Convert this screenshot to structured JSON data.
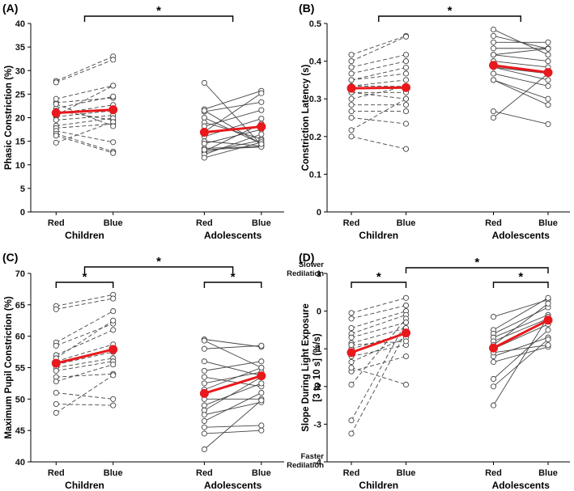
{
  "figure": {
    "xtick_labels": [
      "Red",
      "Blue",
      "Red",
      "Blue"
    ],
    "groups": [
      "Children",
      "Adolescents"
    ]
  },
  "colors": {
    "mean": "#e8191c",
    "individual": "#444444",
    "axis": "#000000"
  },
  "chart_data": [
    {
      "type": "line",
      "panel_label": "(A)",
      "ylabel": "Phasic Constriction (%)",
      "ylim": [
        0,
        40
      ],
      "yticks": [
        0,
        5,
        10,
        15,
        20,
        25,
        30,
        35,
        40
      ],
      "ytick_labels": [
        "0",
        "5",
        "10",
        "15",
        "20",
        "25",
        "30",
        "35",
        "40"
      ],
      "conditions": [
        "Red",
        "Blue"
      ],
      "groups": [
        "Children",
        "Adolescents"
      ],
      "children": {
        "pairs": [
          [
            27.8,
            33.0
          ],
          [
            27.5,
            32.3
          ],
          [
            23.2,
            24.2
          ],
          [
            24.0,
            26.8
          ],
          [
            22.0,
            24.5
          ],
          [
            21.5,
            19.5
          ],
          [
            20.8,
            22.7
          ],
          [
            20.2,
            21.5
          ],
          [
            19.5,
            20.5
          ],
          [
            18.3,
            19.9
          ],
          [
            17.8,
            18.7
          ],
          [
            17.2,
            14.8
          ],
          [
            16.6,
            12.8
          ],
          [
            16.2,
            12.5
          ],
          [
            14.7,
            19.1
          ],
          [
            20.5,
            26.8
          ],
          [
            22.9,
            18.2
          ]
        ],
        "mean": [
          21.0,
          21.7
        ]
      },
      "adolescents": {
        "pairs": [
          [
            27.4,
            14.2
          ],
          [
            21.8,
            25.7
          ],
          [
            21.3,
            23.3
          ],
          [
            20.0,
            14.5
          ],
          [
            19.0,
            15.5
          ],
          [
            18.2,
            21.6
          ],
          [
            17.0,
            25.2
          ],
          [
            16.0,
            19.8
          ],
          [
            15.0,
            14.0
          ],
          [
            14.5,
            17.5
          ],
          [
            13.5,
            13.9
          ],
          [
            12.9,
            18.7
          ],
          [
            12.7,
            15.2
          ],
          [
            12.2,
            16.5
          ],
          [
            11.5,
            14.8
          ],
          [
            13.2,
            13.8
          ],
          [
            21.5,
            14.4
          ]
        ],
        "mean": [
          16.9,
          18.1
        ]
      },
      "significance": [
        {
          "from": "Children",
          "to": "Adolescents",
          "label": "*"
        }
      ]
    },
    {
      "type": "line",
      "panel_label": "(B)",
      "ylabel": "Constriction Latency (s)",
      "ylim": [
        0,
        0.5
      ],
      "yticks": [
        0,
        0.1,
        0.2,
        0.3,
        0.4,
        0.5
      ],
      "ytick_labels": [
        "0",
        "0.1",
        "0.2",
        "0.3",
        "0.4",
        "0.5"
      ],
      "conditions": [
        "Red",
        "Blue"
      ],
      "groups": [
        "Children",
        "Adolescents"
      ],
      "children": {
        "pairs": [
          [
            0.417,
            0.467
          ],
          [
            0.4,
            0.465
          ],
          [
            0.384,
            0.417
          ],
          [
            0.367,
            0.4
          ],
          [
            0.35,
            0.383
          ],
          [
            0.334,
            0.35
          ],
          [
            0.334,
            0.333
          ],
          [
            0.317,
            0.317
          ],
          [
            0.317,
            0.3
          ],
          [
            0.3,
            0.333
          ],
          [
            0.284,
            0.284
          ],
          [
            0.267,
            0.267
          ],
          [
            0.25,
            0.234
          ],
          [
            0.217,
            0.3
          ],
          [
            0.2,
            0.167
          ],
          [
            0.35,
            0.367
          ]
        ],
        "mean": [
          0.328,
          0.33
        ]
      },
      "adolescents": {
        "pairs": [
          [
            0.484,
            0.417
          ],
          [
            0.467,
            0.433
          ],
          [
            0.45,
            0.45
          ],
          [
            0.434,
            0.434
          ],
          [
            0.417,
            0.4
          ],
          [
            0.4,
            0.384
          ],
          [
            0.384,
            0.367
          ],
          [
            0.384,
            0.35
          ],
          [
            0.367,
            0.334
          ],
          [
            0.35,
            0.3
          ],
          [
            0.35,
            0.284
          ],
          [
            0.267,
            0.233
          ],
          [
            0.25,
            0.367
          ],
          [
            0.417,
            0.433
          ]
        ],
        "mean": [
          0.389,
          0.37
        ]
      },
      "significance": [
        {
          "from": "Children",
          "to": "Adolescents",
          "label": "*"
        }
      ]
    },
    {
      "type": "line",
      "panel_label": "(C)",
      "ylabel": "Maximum Pupil Constriction (%)",
      "ylim": [
        40,
        70
      ],
      "yticks": [
        40,
        45,
        50,
        55,
        60,
        65,
        70
      ],
      "ytick_labels": [
        "40",
        "45",
        "50",
        "55",
        "60",
        "65",
        "70"
      ],
      "conditions": [
        "Red",
        "Blue"
      ],
      "groups": [
        "Children",
        "Adolescents"
      ],
      "children": {
        "pairs": [
          [
            64.8,
            66.6
          ],
          [
            64.3,
            66.0
          ],
          [
            59.0,
            64.0
          ],
          [
            58.5,
            62.0
          ],
          [
            57.0,
            61.0
          ],
          [
            56.0,
            58.7
          ],
          [
            55.5,
            57.5
          ],
          [
            55.0,
            56.5
          ],
          [
            54.5,
            56.0
          ],
          [
            53.5,
            54.0
          ],
          [
            52.8,
            55.5
          ],
          [
            51.0,
            50.0
          ],
          [
            49.2,
            49.0
          ],
          [
            47.8,
            53.8
          ],
          [
            55.8,
            58.0
          ],
          [
            56.5,
            62.5
          ]
        ],
        "mean": [
          55.7,
          57.9
        ]
      },
      "adolescents": {
        "pairs": [
          [
            59.5,
            58.3
          ],
          [
            59.3,
            55.0
          ],
          [
            58.0,
            58.5
          ],
          [
            56.0,
            53.7
          ],
          [
            54.5,
            56.0
          ],
          [
            53.5,
            52.0
          ],
          [
            52.5,
            54.3
          ],
          [
            51.5,
            55.0
          ],
          [
            50.0,
            50.0
          ],
          [
            49.0,
            52.5
          ],
          [
            48.2,
            53.5
          ],
          [
            47.5,
            49.5
          ],
          [
            46.5,
            51.0
          ],
          [
            45.5,
            45.8
          ],
          [
            44.5,
            45.0
          ],
          [
            42.0,
            49.8
          ]
        ],
        "mean": [
          50.9,
          53.7
        ]
      },
      "significance": [
        {
          "from": "Children-Red",
          "to": "Children-Blue",
          "label": "*"
        },
        {
          "from": "Adolescents-Red",
          "to": "Adolescents-Blue",
          "label": "*"
        },
        {
          "from": "Children",
          "to": "Adolescents",
          "label": "*"
        }
      ]
    },
    {
      "type": "line",
      "panel_label": "(D)",
      "ylabel_lines": [
        "Slope During Light Exposure",
        "[3 to 10 s] (%/s)"
      ],
      "ylim": [
        -4,
        1
      ],
      "yticks": [
        -4,
        -3,
        -2,
        -1,
        0,
        1
      ],
      "ytick_labels": [
        "-4",
        "-3",
        "-2",
        "-1",
        "0",
        "1"
      ],
      "annotations": {
        "top": [
          "Slower",
          "Redilation"
        ],
        "bottom": [
          "Faster",
          "Redilation"
        ]
      },
      "conditions": [
        "Red",
        "Blue"
      ],
      "groups": [
        "Children",
        "Adolescents"
      ],
      "children": {
        "pairs": [
          [
            -0.05,
            0.35
          ],
          [
            -0.2,
            0.15
          ],
          [
            -0.45,
            0.0
          ],
          [
            -0.6,
            -0.1
          ],
          [
            -0.7,
            -0.3
          ],
          [
            -0.85,
            -0.45
          ],
          [
            -1.0,
            -0.6
          ],
          [
            -1.2,
            -0.9
          ],
          [
            -1.35,
            -0.7
          ],
          [
            -1.6,
            -1.2
          ],
          [
            -1.95,
            -0.2
          ],
          [
            -2.9,
            -0.3
          ],
          [
            -3.25,
            -0.55
          ],
          [
            -1.5,
            -1.95
          ],
          [
            -0.9,
            -0.8
          ]
        ],
        "mean": [
          -1.1,
          -0.58
        ]
      },
      "adolescents": {
        "pairs": [
          [
            -0.15,
            0.3
          ],
          [
            -0.5,
            0.35
          ],
          [
            -0.6,
            0.1
          ],
          [
            -0.7,
            -0.1
          ],
          [
            -0.8,
            -0.2
          ],
          [
            -0.9,
            0.2
          ],
          [
            -1.0,
            -0.35
          ],
          [
            -1.2,
            -0.7
          ],
          [
            -1.35,
            -0.95
          ],
          [
            -1.8,
            -0.5
          ],
          [
            -2.0,
            -0.75
          ],
          [
            -2.5,
            -0.15
          ],
          [
            -1.1,
            -0.9
          ]
        ],
        "mean": [
          -0.98,
          -0.24
        ]
      },
      "significance": [
        {
          "from": "Children-Red",
          "to": "Children-Blue",
          "label": "*"
        },
        {
          "from": "Adolescents-Red",
          "to": "Adolescents-Blue",
          "label": "*"
        },
        {
          "from": "Children-Blue",
          "to": "Adolescents-Blue",
          "label": "*"
        }
      ]
    }
  ]
}
